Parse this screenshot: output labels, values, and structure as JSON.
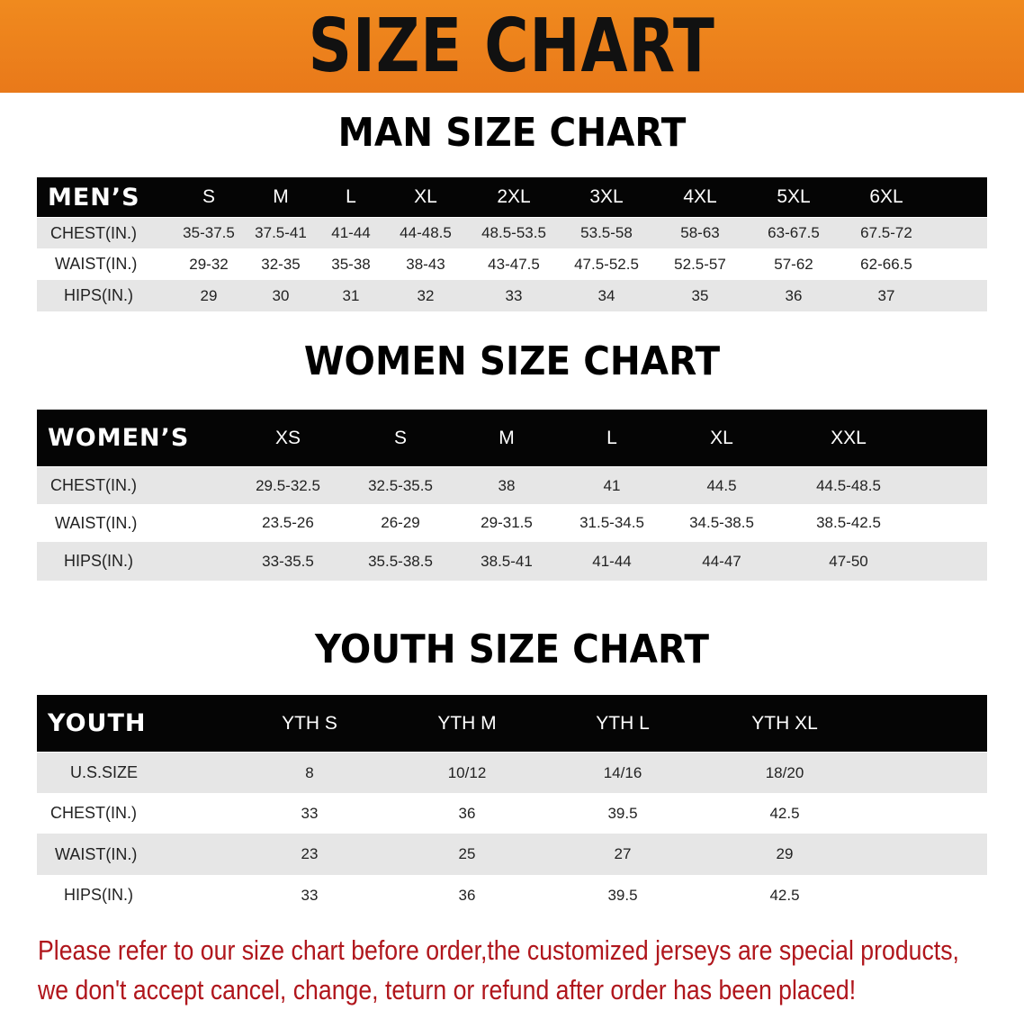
{
  "banner": "SIZE CHART",
  "men": {
    "title": "MAN SIZE CHART",
    "header": "MEN’S",
    "sizes": [
      "S",
      "M",
      "L",
      "XL",
      "2XL",
      "3XL",
      "4XL",
      "5XL",
      "6XL"
    ],
    "rows": [
      {
        "label": "CHEST(IN.)",
        "values": [
          "35-37.5",
          "37.5-41",
          "41-44",
          "44-48.5",
          "48.5-53.5",
          "53.5-58",
          "58-63",
          "63-67.5",
          "67.5-72"
        ]
      },
      {
        "label": "WAIST(IN.)",
        "values": [
          "29-32",
          "32-35",
          "35-38",
          "38-43",
          "43-47.5",
          "47.5-52.5",
          "52.5-57",
          "57-62",
          "62-66.5"
        ]
      },
      {
        "label": "HIPS(IN.)",
        "values": [
          "29",
          "30",
          "31",
          "32",
          "33",
          "34",
          "35",
          "36",
          "37"
        ]
      }
    ]
  },
  "women": {
    "title": "WOMEN SIZE CHART",
    "header": "WOMEN’S",
    "sizes": [
      "XS",
      "S",
      "M",
      "L",
      "XL",
      "XXL"
    ],
    "rows": [
      {
        "label": "CHEST(IN.)",
        "values": [
          "29.5-32.5",
          "32.5-35.5",
          "38",
          "41",
          "44.5",
          "44.5-48.5"
        ]
      },
      {
        "label": "WAIST(IN.)",
        "values": [
          "23.5-26",
          "26-29",
          "29-31.5",
          "31.5-34.5",
          "34.5-38.5",
          "38.5-42.5"
        ]
      },
      {
        "label": "HIPS(IN.)",
        "values": [
          "33-35.5",
          "35.5-38.5",
          "38.5-41",
          "41-44",
          "44-47",
          "47-50"
        ]
      }
    ]
  },
  "youth": {
    "title": "YOUTH SIZE CHART",
    "header": "YOUTH",
    "sizes": [
      "YTH S",
      "YTH M",
      "YTH L",
      "YTH XL"
    ],
    "rows": [
      {
        "label": "U.S.SIZE",
        "values": [
          "8",
          "10/12",
          "14/16",
          "18/20"
        ]
      },
      {
        "label": "CHEST(IN.)",
        "values": [
          "33",
          "36",
          "39.5",
          "42.5"
        ]
      },
      {
        "label": "WAIST(IN.)",
        "values": [
          "23",
          "25",
          "27",
          "29"
        ]
      },
      {
        "label": "HIPS(IN.)",
        "values": [
          "33",
          "36",
          "39.5",
          "42.5"
        ]
      }
    ]
  },
  "notice": [
    "Please refer to our size chart before order,the customized jerseys are special products,",
    "we don't accept cancel, change, teturn or refund after order has been placed!"
  ]
}
